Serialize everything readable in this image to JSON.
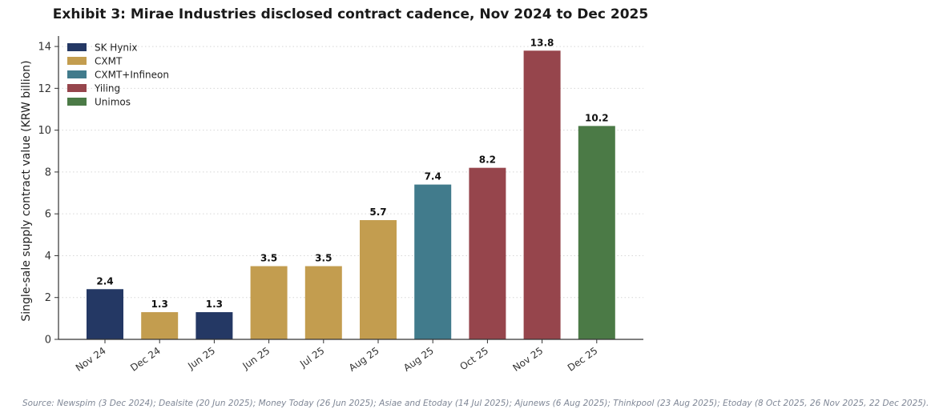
{
  "title": "Exhibit 3: Mirae Industries disclosed contract cadence, Nov 2024 to Dec 2025",
  "source": "Source: Newspim (3 Dec 2024); Dealsite (20 Jun 2025); Money Today (26 Jun 2025); Asiae and Etoday (14 Jul 2025); Ajunews (6 Aug 2025); Thinkpool (23 Aug 2025); Etoday (8 Oct 2025, 26 Nov 2025, 22 Dec 2025).",
  "chart_data": {
    "type": "bar",
    "title": "Exhibit 3: Mirae Industries disclosed contract cadence, Nov 2024 to Dec 2025",
    "xlabel": "",
    "ylabel": "Single-sale supply contract value (KRW billion)",
    "ylim": [
      0,
      14.5
    ],
    "yticks": [
      0,
      2,
      4,
      6,
      8,
      10,
      12,
      14
    ],
    "grid": "horizontal dotted",
    "legend_position": "top-left",
    "categories": [
      "Nov 24",
      "Dec 24",
      "Jun 25",
      "Jun 25",
      "Jul 25",
      "Aug 25",
      "Aug 25",
      "Oct 25",
      "Nov 25",
      "Dec 25"
    ],
    "values": [
      2.4,
      1.3,
      1.3,
      3.5,
      3.5,
      5.7,
      7.4,
      8.2,
      13.8,
      10.2
    ],
    "value_labels": [
      "2.4",
      "1.3",
      "1.3",
      "3.5",
      "3.5",
      "5.7",
      "7.4",
      "8.2",
      "13.8",
      "10.2"
    ],
    "customers": [
      "SK Hynix",
      "CXMT",
      "SK Hynix",
      "CXMT",
      "CXMT",
      "CXMT",
      "CXMT+Infineon",
      "Yiling",
      "Yiling",
      "Unimos"
    ],
    "legend": [
      {
        "name": "SK Hynix",
        "color": "#243864"
      },
      {
        "name": "CXMT",
        "color": "#c39d4f"
      },
      {
        "name": "CXMT+Infineon",
        "color": "#417b8c"
      },
      {
        "name": "Yiling",
        "color": "#96454c"
      },
      {
        "name": "Unimos",
        "color": "#4b7a46"
      }
    ]
  }
}
